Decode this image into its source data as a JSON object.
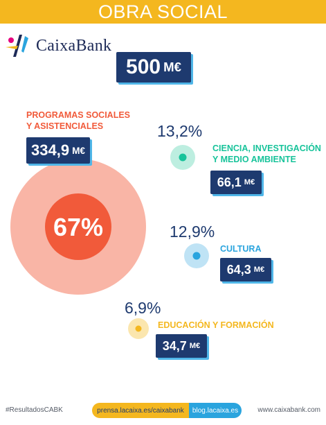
{
  "header": {
    "title": "OBRA SOCIAL"
  },
  "logo": {
    "name": "CaixaBank",
    "icon": "caixabank-star-logo"
  },
  "total": {
    "value": "500",
    "unit": "M€"
  },
  "colors": {
    "header_bg": "#f4b71f",
    "box_bg": "#1e3a6f",
    "box_shadow": "#4fb6e8",
    "programas": "#f15a3a",
    "ciencia": "#17c39a",
    "cultura": "#2aa4de",
    "educacion": "#f4b71f"
  },
  "chart_data": {
    "type": "bubble",
    "unit": "M€",
    "total": 500,
    "categories": [
      {
        "label": "PROGRAMAS SOCIALES Y ASISTENCIALES",
        "percent": 67,
        "percent_label": "67%",
        "value": 334.9,
        "value_label": "334,9"
      },
      {
        "label": "CIENCIA, INVESTIGACIÓN Y MEDIO AMBIENTE",
        "percent": 13.2,
        "percent_label": "13,2%",
        "value": 66.1,
        "value_label": "66,1"
      },
      {
        "label": "CULTURA",
        "percent": 12.9,
        "percent_label": "12,9%",
        "value": 64.3,
        "value_label": "64,3"
      },
      {
        "label": "EDUCACIÓN Y FORMACIÓN",
        "percent": 6.9,
        "percent_label": "6,9%",
        "value": 34.7,
        "value_label": "34,7"
      }
    ]
  },
  "labels": {
    "programas_line1": "PROGRAMAS SOCIALES",
    "programas_line2": "Y ASISTENCIALES",
    "ciencia_line1": "CIENCIA, INVESTIGACIÓN",
    "ciencia_line2": "Y MEDIO AMBIENTE",
    "cultura": "CULTURA",
    "educacion": "EDUCACIÓN Y FORMACIÓN"
  },
  "footer": {
    "hashtag": "#ResultadosCABK",
    "link1": "prensa.lacaixa.es/caixabank",
    "link2": "blog.lacaixa.es",
    "website": "www.caixabank.com"
  }
}
